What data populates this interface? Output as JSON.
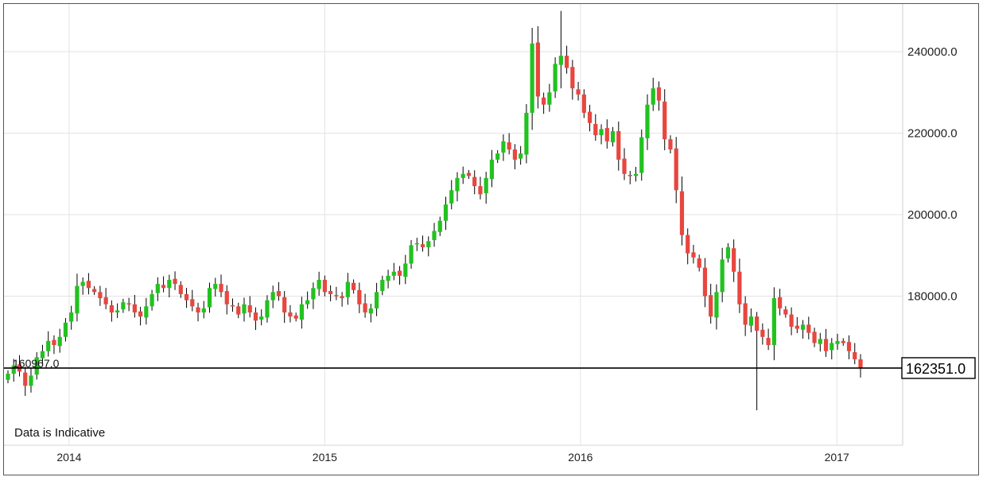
{
  "chart_data": {
    "type": "candlestick",
    "note": "Data is Indicative",
    "start_label": "160967.0",
    "last_price": 162351,
    "last_price_label": "162351.0",
    "x_ticks": [
      "2014",
      "2015",
      "2016",
      "2017"
    ],
    "y_ticks": [
      "240000.0",
      "220000.0",
      "200000.0",
      "180000.0"
    ],
    "ylim": [
      145000,
      250000
    ],
    "xlim": [
      "2013-09-30",
      "2017-04-05"
    ],
    "grid": true,
    "colors": {
      "up": "#22c21f",
      "down": "#e8463f",
      "wick": "#000000",
      "grid": "#e3e3e3"
    },
    "closes": [
      160967,
      163000,
      161500,
      158000,
      160500,
      165000,
      166500,
      169000,
      168000,
      170000,
      173500,
      176000,
      182500,
      183500,
      182000,
      181000,
      179500,
      178000,
      176000,
      176500,
      178500,
      178000,
      176000,
      175000,
      177500,
      180500,
      183000,
      182000,
      184000,
      183000,
      180500,
      179000,
      177500,
      176000,
      177000,
      182000,
      183000,
      181000,
      178000,
      177500,
      175500,
      178000,
      176000,
      174000,
      175000,
      179000,
      181000,
      180000,
      176000,
      175000,
      174500,
      178000,
      179000,
      182000,
      184000,
      181000,
      180500,
      180000,
      179500,
      183500,
      181500,
      178000,
      176000,
      177000,
      181000,
      184000,
      185000,
      186000,
      185000,
      188000,
      192500,
      193000,
      192000,
      193500,
      196000,
      198500,
      202500,
      206000,
      209000,
      210000,
      209500,
      207000,
      205000,
      209000,
      213500,
      215000,
      218000,
      216000,
      213500,
      215000,
      225000,
      242000,
      229000,
      227000,
      230000,
      237000,
      239000,
      236000,
      231000,
      229500,
      225000,
      222500,
      219500,
      221000,
      218000,
      220500,
      213500,
      210000,
      209500,
      210000,
      219000,
      227000,
      231000,
      228000,
      218500,
      216000,
      206000,
      195000,
      190500,
      189500,
      187000,
      180000,
      175000,
      181000,
      189000,
      192000,
      186000,
      178000,
      173000,
      175000,
      171500,
      170000,
      168000,
      179500,
      177000,
      175500,
      172500,
      172000,
      173000,
      171000,
      168500,
      169500,
      166500,
      168500,
      169000,
      168500,
      166500,
      164500,
      162351
    ]
  }
}
